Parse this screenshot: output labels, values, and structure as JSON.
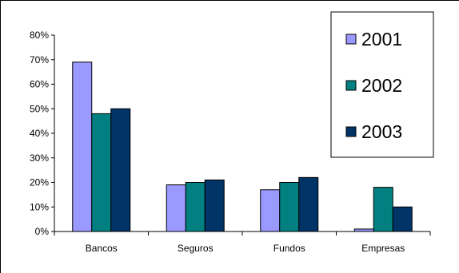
{
  "chart_data": {
    "type": "bar",
    "title": "",
    "xlabel": "",
    "ylabel": "",
    "categories": [
      "Bancos",
      "Seguros",
      "Fundos",
      "Empresas"
    ],
    "series": [
      {
        "name": "2001",
        "color": "#9999ff",
        "values": [
          69,
          19,
          17,
          1
        ]
      },
      {
        "name": "2002",
        "color": "#008080",
        "values": [
          48,
          20,
          20,
          18
        ]
      },
      {
        "name": "2003",
        "color": "#003366",
        "values": [
          50,
          21,
          22,
          10
        ]
      }
    ],
    "ylim": [
      0,
      80
    ],
    "yticks": [
      {
        "value": 0,
        "label": "0%"
      },
      {
        "value": 10,
        "label": "10%"
      },
      {
        "value": 20,
        "label": "20%"
      },
      {
        "value": 30,
        "label": "30%"
      },
      {
        "value": 40,
        "label": "40%"
      },
      {
        "value": 50,
        "label": "50%"
      },
      {
        "value": 60,
        "label": "60%"
      },
      {
        "value": 70,
        "label": "70%"
      },
      {
        "value": 80,
        "label": "80%"
      }
    ],
    "grid": false,
    "legend_position": "top-right"
  }
}
